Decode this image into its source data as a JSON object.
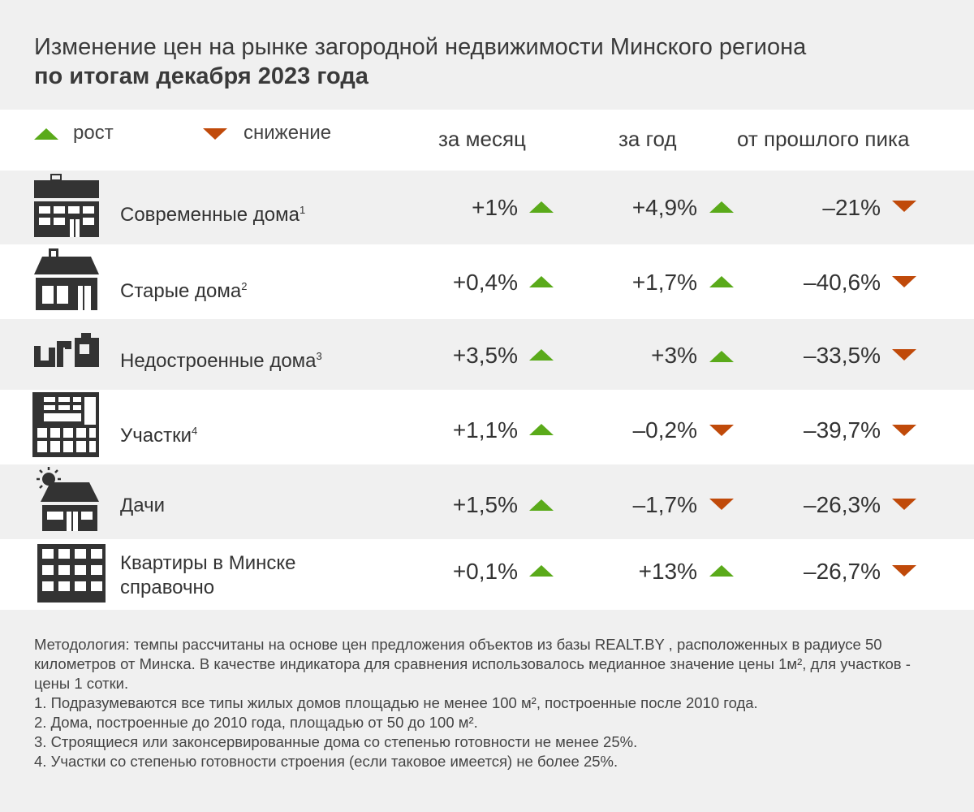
{
  "title": {
    "line1": "Изменение цен на рынке загородной недвижимости Минского региона",
    "line2": "по итогам декабря 2023 года"
  },
  "legend": {
    "up_label": "рост",
    "down_label": "снижение",
    "up_color": "#5aaa1a",
    "down_color": "#c04a0a"
  },
  "columns": {
    "month": "за месяц",
    "year": "за год",
    "peak": "от прошлого пика"
  },
  "rows": [
    {
      "icon": "modern-house-icon",
      "label": "Современные дома",
      "note": "1",
      "month": "+1%",
      "month_dir": "up",
      "year": "+4,9%",
      "year_dir": "up",
      "peak": "–21%",
      "peak_dir": "down"
    },
    {
      "icon": "old-house-icon",
      "label": "Старые дома",
      "note": "2",
      "month": "+0,4%",
      "month_dir": "up",
      "year": "+1,7%",
      "year_dir": "up",
      "peak": "–40,6%",
      "peak_dir": "down"
    },
    {
      "icon": "unfinished-house-icon",
      "label": "Недостроенные дома",
      "note": "3",
      "month": "+3,5%",
      "month_dir": "up",
      "year": "+3%",
      "year_dir": "up",
      "peak": "–33,5%",
      "peak_dir": "down"
    },
    {
      "icon": "land-plot-icon",
      "label": "Участки",
      "note": "4",
      "month": "+1,1%",
      "month_dir": "up",
      "year": "–0,2%",
      "year_dir": "down",
      "peak": "–39,7%",
      "peak_dir": "down"
    },
    {
      "icon": "dacha-icon",
      "label": "Дачи",
      "note": "",
      "month": "+1,5%",
      "month_dir": "up",
      "year": "–1,7%",
      "year_dir": "down",
      "peak": "–26,3%",
      "peak_dir": "down"
    },
    {
      "icon": "apartments-icon",
      "label": "Квартиры в Минске",
      "label2": "справочно",
      "note": "",
      "month": "+0,1%",
      "month_dir": "up",
      "year": "+13%",
      "year_dir": "up",
      "peak": "–26,7%",
      "peak_dir": "down"
    }
  ],
  "notes": {
    "methodology": "Методология: темпы рассчитаны на основе цен предложения объектов из базы REALT.BY , расположенных в радиусе 50 километров от Минска. В качестве индикатора для сравнения использовалось медианное значение цены 1м², для участков  - цены 1 сотки.",
    "n1": "1. Подразумеваются все типы жилых домов площадью не менее 100 м², построенные после 2010 года.",
    "n2": "2. Дома, построенные до 2010 года, площадью от 50 до 100 м².",
    "n3": "3. Строящиеся или законсервированные дома со степенью готовности не менее 25%.",
    "n4": "4. Участки со степенью готовности строения (если таковое имеется) не более 25%."
  }
}
